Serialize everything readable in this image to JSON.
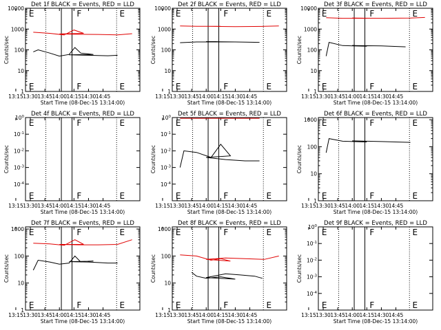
{
  "colors": {
    "events": "#000000",
    "lld": "#e00000",
    "axes": "#000000",
    "background": "#ffffff"
  },
  "chart_data": [
    {
      "type": "line",
      "title": "Det 1f BLACK = Events, RED = LLD",
      "xlabel": "Start Time (08-Dec-15 13:14:00)",
      "ylabel": "Counts/sec",
      "xticks": [
        "13:15",
        "13:30",
        "13:45",
        "14:00",
        "14:15",
        "14:30",
        "14:45"
      ],
      "yscale": "log",
      "yticks": [
        "1",
        "10",
        "100",
        "1000",
        "10000"
      ],
      "ylim": [
        1,
        10000
      ],
      "xlim_minutes": [
        13.25,
        14.83
      ],
      "markers": [
        {
          "label": "E",
          "x": 13.27
        },
        {
          "label": "F",
          "x": 13.75
        },
        {
          "label": "E",
          "x": 14.62
        }
      ],
      "solid_lines_x": [
        13.73,
        14.02
      ],
      "dotted_lines_x": [
        13.46,
        14.59
      ],
      "series": [
        {
          "name": "LLD",
          "color": "#e00000",
          "x": [
            13.33,
            13.5,
            13.65,
            13.75,
            13.85,
            14.0,
            14.2,
            14.4,
            14.6,
            14.75
          ],
          "y": [
            700,
            620,
            520,
            900,
            620,
            580,
            560,
            550,
            520,
            600
          ]
        },
        {
          "name": "Events",
          "color": "#000000",
          "x": [
            13.33,
            13.38,
            13.5,
            13.6,
            13.7,
            13.76,
            13.82,
            13.95,
            14.1,
            14.3,
            14.5,
            14.6
          ],
          "y": [
            80,
            100,
            70,
            50,
            60,
            130,
            70,
            60,
            58,
            55,
            52,
            55
          ]
        }
      ]
    },
    {
      "type": "line",
      "title": "Det 2f BLACK = Events, RED = LLD",
      "xlabel": "Start Time (08-Dec-15 13:14:00)",
      "ylabel": "Counts/sec",
      "xticks": [
        "13:15",
        "13:30",
        "13:45",
        "14:00",
        "14:15",
        "14:30",
        "14:45"
      ],
      "yscale": "log",
      "yticks": [
        "1",
        "10",
        "100",
        "1000",
        "10000"
      ],
      "ylim": [
        1,
        10000
      ],
      "xlim_minutes": [
        13.25,
        14.83
      ],
      "markers": [
        {
          "label": "E",
          "x": 13.27
        },
        {
          "label": "F",
          "x": 13.75
        },
        {
          "label": "E",
          "x": 14.62
        }
      ],
      "solid_lines_x": [
        13.73,
        14.02
      ],
      "dotted_lines_x": [
        13.46,
        14.59
      ],
      "series": [
        {
          "name": "LLD",
          "color": "#e00000",
          "x": [
            13.33,
            13.5,
            13.75,
            14.0,
            14.3,
            14.6,
            14.75
          ],
          "y": [
            1400,
            1350,
            1350,
            1350,
            1300,
            1350,
            1400
          ]
        },
        {
          "name": "Events",
          "color": "#000000",
          "x": [
            13.33,
            13.5,
            13.75,
            14.0,
            14.3,
            14.55
          ],
          "y": [
            220,
            240,
            240,
            250,
            240,
            230
          ]
        }
      ]
    },
    {
      "type": "line",
      "title": "Det 3f BLACK = Events, RED = LLD",
      "xlabel": "Start Time (08-Dec-15 13:14:00)",
      "ylabel": "Counts/sec",
      "xticks": [
        "13:15",
        "13:30",
        "13:45",
        "14:00",
        "14:15",
        "14:30",
        "14:45"
      ],
      "yscale": "log",
      "yticks": [
        "1",
        "10",
        "100",
        "1000",
        "10000"
      ],
      "ylim": [
        1,
        10000
      ],
      "xlim_minutes": [
        13.25,
        14.83
      ],
      "markers": [
        {
          "label": "E",
          "x": 13.27
        },
        {
          "label": "F",
          "x": 13.75
        },
        {
          "label": "E",
          "x": 14.62
        }
      ],
      "solid_lines_x": [
        13.73,
        14.02
      ],
      "dotted_lines_x": [
        13.46,
        14.59
      ],
      "series": [
        {
          "name": "LLD",
          "color": "#e00000",
          "x": [
            13.33,
            13.5,
            13.75,
            14.0,
            14.3,
            14.6,
            14.75
          ],
          "y": [
            3500,
            3300,
            3300,
            3400,
            3300,
            3400,
            3600
          ]
        },
        {
          "name": "Events",
          "color": "#000000",
          "x": [
            13.33,
            13.36,
            13.5,
            13.75,
            14.0,
            14.3,
            14.55
          ],
          "y": [
            50,
            230,
            160,
            150,
            160,
            155,
            140
          ]
        }
      ]
    },
    {
      "type": "line",
      "title": "Det 4f BLACK = Events, RED = LLD",
      "xlabel": "Start Time (08-Dec-15 13:14:00)",
      "ylabel": "Counts/sec",
      "xticks": [
        "13:15",
        "13:30",
        "13:45",
        "14:00",
        "14:15",
        "14:30",
        "14:45"
      ],
      "yscale": "log",
      "ytick_exponents": [
        0,
        -1,
        -2,
        -3,
        -4
      ],
      "ytick_base": "10",
      "ylim": [
        1e-05,
        1
      ],
      "xlim_minutes": [
        13.25,
        14.83
      ],
      "markers": [
        {
          "label": "E",
          "x": 13.27
        },
        {
          "label": "F",
          "x": 13.75
        },
        {
          "label": "E",
          "x": 14.62
        }
      ],
      "solid_lines_x": [
        13.73,
        14.02
      ],
      "dotted_lines_x": [
        13.46,
        14.59
      ],
      "series": []
    },
    {
      "type": "line",
      "title": "Det 5f BLACK = Events, RED = LLD",
      "xlabel": "Start Time (08-Dec-15 13:14:00)",
      "ylabel": "Counts/sec",
      "xticks": [
        "13:15",
        "13:30",
        "13:45",
        "14:00",
        "14:15",
        "14:30",
        "14:45"
      ],
      "yscale": "log",
      "ytick_exponents": [
        0,
        -1,
        -2,
        -3,
        -4
      ],
      "ytick_base": "10",
      "ylim": [
        1e-05,
        1
      ],
      "xlim_minutes": [
        13.25,
        14.83
      ],
      "markers": [
        {
          "label": "E",
          "x": 13.27
        },
        {
          "label": "F",
          "x": 13.75
        },
        {
          "label": "E",
          "x": 14.62
        }
      ],
      "solid_lines_x": [
        13.73,
        14.02
      ],
      "dotted_lines_x": [
        13.46,
        14.59
      ],
      "series": [
        {
          "name": "LLD",
          "color": "#e00000",
          "x": [
            13.33,
            13.75,
            14.2,
            14.55
          ],
          "y": [
            0.9,
            0.9,
            0.9,
            0.9
          ]
        },
        {
          "name": "Events",
          "color": "#000000",
          "x": [
            13.33,
            13.37,
            13.5,
            13.65,
            13.75,
            13.85,
            14.0,
            14.2,
            14.4,
            14.55
          ],
          "y": [
            0.001,
            0.01,
            0.008,
            0.004,
            0.025,
            0.005,
            0.004,
            0.003,
            0.0025,
            0.0025
          ]
        }
      ]
    },
    {
      "type": "line",
      "title": "Det 6f BLACK = Events, RED = LLD",
      "xlabel": "Start Time (08-Dec-15 13:14:00)",
      "ylabel": "Counts/sec",
      "xticks": [
        "13:15",
        "13:30",
        "13:45",
        "14:00",
        "14:15",
        "14:30",
        "14:45"
      ],
      "yscale": "log",
      "yticks": [
        "1",
        "10",
        "100",
        "1000"
      ],
      "ylim": [
        1,
        1200
      ],
      "xlim_minutes": [
        13.25,
        14.83
      ],
      "markers": [
        {
          "label": "E",
          "x": 13.27
        },
        {
          "label": "F",
          "x": 13.75
        },
        {
          "label": "E",
          "x": 14.62
        }
      ],
      "solid_lines_x": [
        13.73,
        14.02
      ],
      "dotted_lines_x": [
        13.46,
        14.59
      ],
      "series": [
        {
          "name": "Events",
          "color": "#000000",
          "x": [
            13.33,
            13.36,
            13.5,
            13.75,
            14.0,
            14.3,
            14.6
          ],
          "y": [
            60,
            200,
            160,
            150,
            165,
            155,
            145
          ]
        }
      ]
    },
    {
      "type": "line",
      "title": "Det 7f BLACK = Events, RED = LLD",
      "xlabel": "Start Time (08-Dec-15 13:14:00)",
      "ylabel": "Counts/sec",
      "xticks": [
        "13:15",
        "13:30",
        "13:45",
        "14:00",
        "14:15",
        "14:30",
        "14:45"
      ],
      "yscale": "log",
      "yticks": [
        "1",
        "10",
        "100",
        "1000"
      ],
      "ylim": [
        1,
        1200
      ],
      "xlim_minutes": [
        13.25,
        14.83
      ],
      "markers": [
        {
          "label": "E",
          "x": 13.27
        },
        {
          "label": "F",
          "x": 13.75
        },
        {
          "label": "E",
          "x": 14.62
        }
      ],
      "solid_lines_x": [
        13.73,
        14.02
      ],
      "dotted_lines_x": [
        13.46,
        14.59
      ],
      "series": [
        {
          "name": "LLD",
          "color": "#e00000",
          "x": [
            13.33,
            13.5,
            13.65,
            13.76,
            13.85,
            14.0,
            14.2,
            14.4,
            14.6,
            14.75
          ],
          "y": [
            300,
            280,
            250,
            400,
            270,
            270,
            260,
            260,
            270,
            400
          ]
        },
        {
          "name": "Events",
          "color": "#000000",
          "x": [
            13.33,
            13.38,
            13.5,
            13.6,
            13.7,
            13.76,
            13.82,
            13.95,
            14.1,
            14.3,
            14.5,
            14.6
          ],
          "y": [
            30,
            70,
            60,
            50,
            55,
            100,
            60,
            65,
            62,
            60,
            55,
            55
          ]
        }
      ]
    },
    {
      "type": "line",
      "title": "Det 8f BLACK = Events, RED = LLD",
      "xlabel": "Start Time (08-Dec-15 13:14:00)",
      "ylabel": "Counts/sec",
      "xticks": [
        "13:15",
        "13:30",
        "13:45",
        "14:00",
        "14:15",
        "14:30",
        "14:45"
      ],
      "yscale": "log",
      "yticks": [
        "1",
        "10",
        "100",
        "1000"
      ],
      "ylim": [
        1,
        1200
      ],
      "xlim_minutes": [
        13.25,
        14.83
      ],
      "markers": [
        {
          "label": "E",
          "x": 13.27
        },
        {
          "label": "F",
          "x": 13.75
        },
        {
          "label": "E",
          "x": 14.62
        }
      ],
      "solid_lines_x": [
        13.73,
        14.02
      ],
      "dotted_lines_x": [
        13.46,
        14.59
      ],
      "series": [
        {
          "name": "LLD",
          "color": "#e00000",
          "x": [
            13.33,
            13.5,
            13.65,
            13.75,
            13.85,
            14.0,
            14.2,
            14.4,
            14.6,
            14.75
          ],
          "y": [
            110,
            100,
            70,
            80,
            65,
            75,
            85,
            80,
            75,
            100
          ]
        },
        {
          "name": "Events",
          "color": "#000000",
          "x": [
            13.45,
            13.5,
            13.6,
            13.75,
            13.9,
            14.0,
            14.2,
            14.35,
            14.5,
            14.58
          ],
          "y": [
            25,
            18,
            15,
            17,
            14,
            16,
            22,
            20,
            18,
            15
          ]
        }
      ]
    },
    {
      "type": "line",
      "title": "Det 9f BLACK = Events, RED = LLD",
      "xlabel": "Start Time (08-Dec-15 13:14:00)",
      "ylabel": "Counts/sec",
      "xticks": [
        "13:15",
        "13:30",
        "13:45",
        "14:00",
        "14:15",
        "14:30",
        "14:45"
      ],
      "yscale": "log",
      "ytick_exponents": [
        0,
        -1,
        -2,
        -3,
        -4
      ],
      "ytick_base": "10",
      "ylim": [
        1e-05,
        1
      ],
      "xlim_minutes": [
        13.25,
        14.83
      ],
      "markers": [
        {
          "label": "E",
          "x": 13.27
        },
        {
          "label": "F",
          "x": 13.75
        },
        {
          "label": "E",
          "x": 14.62
        }
      ],
      "solid_lines_x": [
        13.73,
        14.02
      ],
      "dotted_lines_x": [
        13.46,
        14.59
      ],
      "series": []
    }
  ]
}
